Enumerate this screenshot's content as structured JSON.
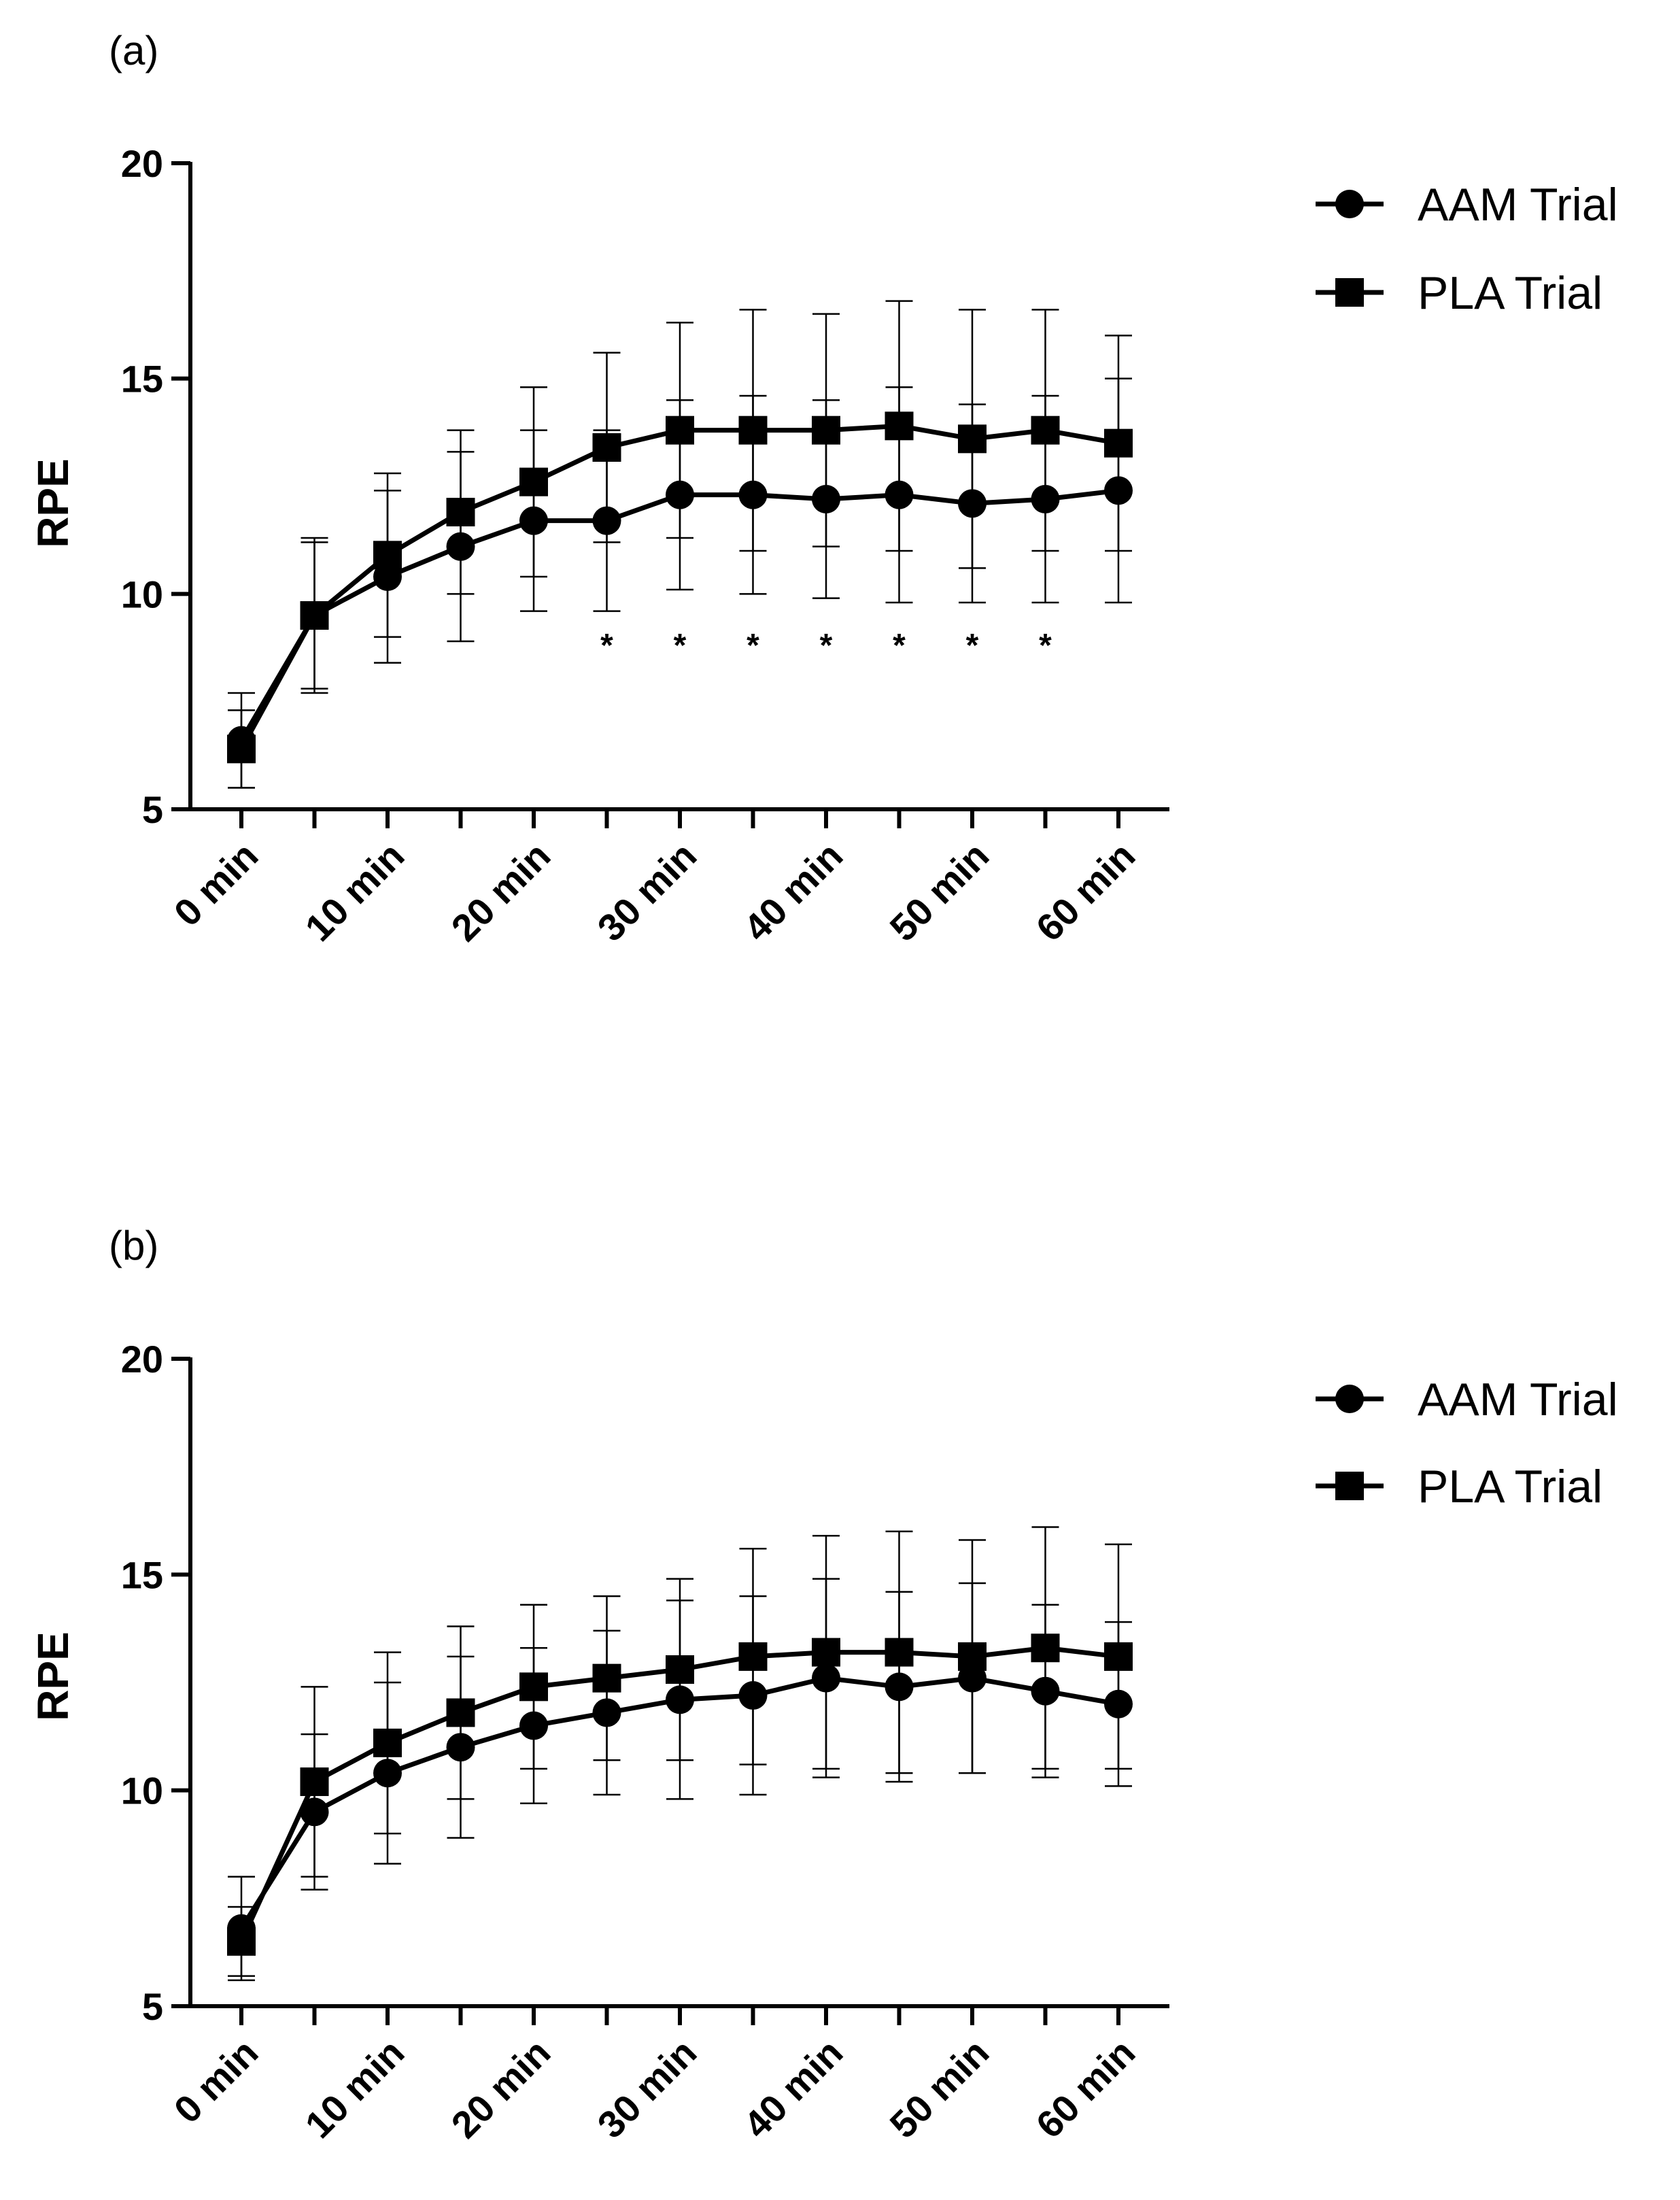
{
  "chart_data": [
    {
      "type": "line",
      "panel_label": "(a)",
      "ylabel": "RPE",
      "xlabel": "",
      "ylim": [
        5,
        20
      ],
      "y_ticks": [
        5,
        10,
        15,
        20
      ],
      "x": [
        0,
        5,
        10,
        15,
        20,
        25,
        30,
        35,
        40,
        45,
        50,
        55,
        60
      ],
      "x_tick_values": [
        0,
        10,
        20,
        30,
        40,
        50,
        60
      ],
      "x_tick_labels": [
        "0 min",
        "10 min",
        "20 min",
        "30 min",
        "40 min",
        "50 min",
        "60 min"
      ],
      "legend": "top-right",
      "series": [
        {
          "name": "AAM Trial",
          "marker": "circle",
          "values": [
            6.6,
            9.5,
            10.4,
            11.1,
            11.7,
            11.7,
            12.3,
            12.3,
            12.2,
            12.3,
            12.1,
            12.2,
            12.4
          ],
          "error": [
            1.1,
            1.7,
            2.0,
            2.2,
            2.1,
            2.1,
            2.2,
            2.3,
            2.3,
            2.5,
            2.3,
            2.4,
            2.6
          ]
        },
        {
          "name": "PLA Trial",
          "marker": "square",
          "values": [
            6.4,
            9.5,
            10.9,
            11.9,
            12.6,
            13.4,
            13.8,
            13.8,
            13.8,
            13.9,
            13.6,
            13.8,
            13.5
          ],
          "error": [
            0.9,
            1.8,
            1.9,
            1.9,
            2.2,
            2.2,
            2.5,
            2.8,
            2.7,
            2.9,
            3.0,
            2.8,
            2.5
          ]
        }
      ],
      "annotations": [
        {
          "text": "*",
          "x": 25
        },
        {
          "text": "*",
          "x": 30
        },
        {
          "text": "*",
          "x": 35
        },
        {
          "text": "*",
          "x": 40
        },
        {
          "text": "*",
          "x": 45
        },
        {
          "text": "*",
          "x": 50
        },
        {
          "text": "*",
          "x": 55
        }
      ]
    },
    {
      "type": "line",
      "panel_label": "(b)",
      "ylabel": "RPE",
      "xlabel": "",
      "ylim": [
        5,
        20
      ],
      "y_ticks": [
        5,
        10,
        15,
        20
      ],
      "x": [
        0,
        5,
        10,
        15,
        20,
        25,
        30,
        35,
        40,
        45,
        50,
        55,
        60
      ],
      "x_tick_values": [
        0,
        10,
        20,
        30,
        40,
        50,
        60
      ],
      "x_tick_labels": [
        "0 min",
        "10 min",
        "20 min",
        "30 min",
        "40 min",
        "50 min",
        "60 min"
      ],
      "legend": "top-right",
      "series": [
        {
          "name": "AAM Trial",
          "marker": "circle",
          "values": [
            6.8,
            9.5,
            10.4,
            11.0,
            11.5,
            11.8,
            12.1,
            12.2,
            12.6,
            12.4,
            12.6,
            12.3,
            12.0
          ],
          "error": [
            1.2,
            1.8,
            2.1,
            2.1,
            1.8,
            1.9,
            2.3,
            2.3,
            2.3,
            2.2,
            2.2,
            2.0,
            1.9
          ]
        },
        {
          "name": "PLA Trial",
          "marker": "square",
          "values": [
            6.5,
            10.2,
            11.1,
            11.8,
            12.4,
            12.6,
            12.8,
            13.1,
            13.2,
            13.2,
            13.1,
            13.3,
            13.1
          ],
          "error": [
            0.8,
            2.2,
            2.1,
            2.0,
            1.9,
            1.9,
            2.1,
            2.5,
            2.7,
            2.8,
            2.7,
            2.8,
            2.6
          ]
        }
      ],
      "annotations": []
    }
  ]
}
